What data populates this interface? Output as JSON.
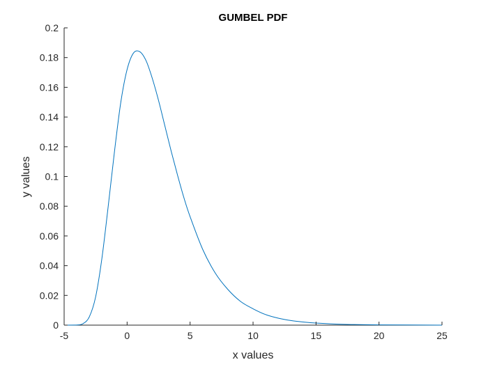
{
  "chart_data": {
    "type": "line",
    "title": "GUMBEL PDF",
    "xlabel": "x values",
    "ylabel": "y values",
    "xlim": [
      -5,
      25
    ],
    "ylim": [
      0,
      0.2
    ],
    "xticks": [
      -5,
      0,
      5,
      10,
      15,
      20,
      25
    ],
    "yticks": [
      0,
      0.02,
      0.04,
      0.06,
      0.08,
      0.1,
      0.12,
      0.14,
      0.16,
      0.18,
      0.2
    ],
    "xtick_labels": [
      "-5",
      "0",
      "5",
      "10",
      "15",
      "20",
      "25"
    ],
    "ytick_labels": [
      "0",
      "0.02",
      "0.04",
      "0.06",
      "0.08",
      "0.1",
      "0.12",
      "0.14",
      "0.16",
      "0.18",
      "0.2"
    ],
    "grid": false,
    "series": [
      {
        "color": "#0072BD",
        "x": [
          -5,
          -4,
          -3.5,
          -3,
          -2.5,
          -2,
          -1.5,
          -1,
          -0.5,
          0,
          0.5,
          1,
          1.5,
          2,
          2.5,
          3,
          3.5,
          4,
          4.5,
          5,
          6,
          7,
          8,
          9,
          10,
          11,
          12,
          13,
          14,
          15,
          17,
          20,
          25
        ],
        "y": [
          0,
          0.0001,
          0.001,
          0.0056,
          0.019,
          0.045,
          0.08,
          0.117,
          0.15,
          0.172,
          0.183,
          0.184,
          0.178,
          0.166,
          0.151,
          0.134,
          0.117,
          0.101,
          0.086,
          0.073,
          0.051,
          0.035,
          0.024,
          0.016,
          0.011,
          0.0071,
          0.0047,
          0.0031,
          0.0021,
          0.0014,
          0.0006,
          0.0002,
          0
        ]
      }
    ]
  }
}
